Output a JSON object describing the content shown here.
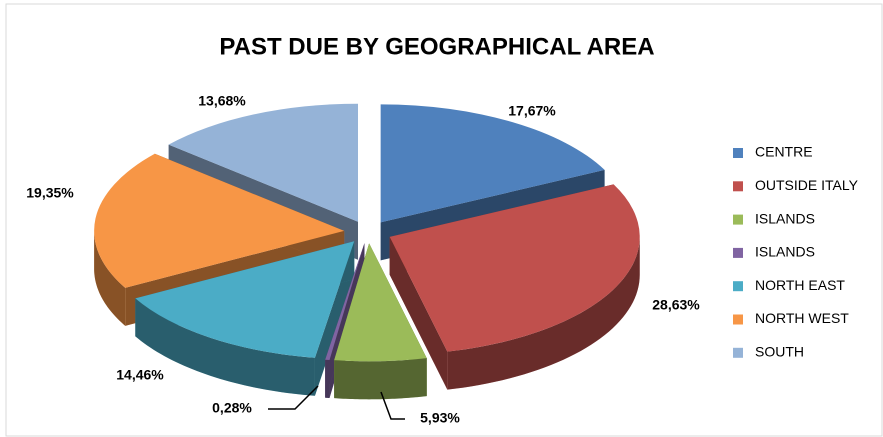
{
  "chart_data": {
    "type": "pie3d",
    "title": "PAST DUE BY GEOGRAPHICAL AREA",
    "categories": [
      "CENTRE",
      "OUTSIDE ITALY",
      "ISLANDS",
      "ISLANDS",
      "NORTH EAST",
      "NORTH WEST",
      "SOUTH"
    ],
    "values": [
      17.67,
      28.63,
      5.93,
      0.28,
      14.46,
      19.35,
      13.68
    ],
    "value_labels": [
      "17,67%",
      "28,63%",
      "5,93%",
      "0,28%",
      "14,46%",
      "19,35%",
      "13,68%"
    ],
    "colors": [
      "#4f81bd",
      "#c0504d",
      "#9bbb59",
      "#8064a2",
      "#4bacc6",
      "#f79646",
      "#95b3d7"
    ],
    "legend": "right"
  }
}
